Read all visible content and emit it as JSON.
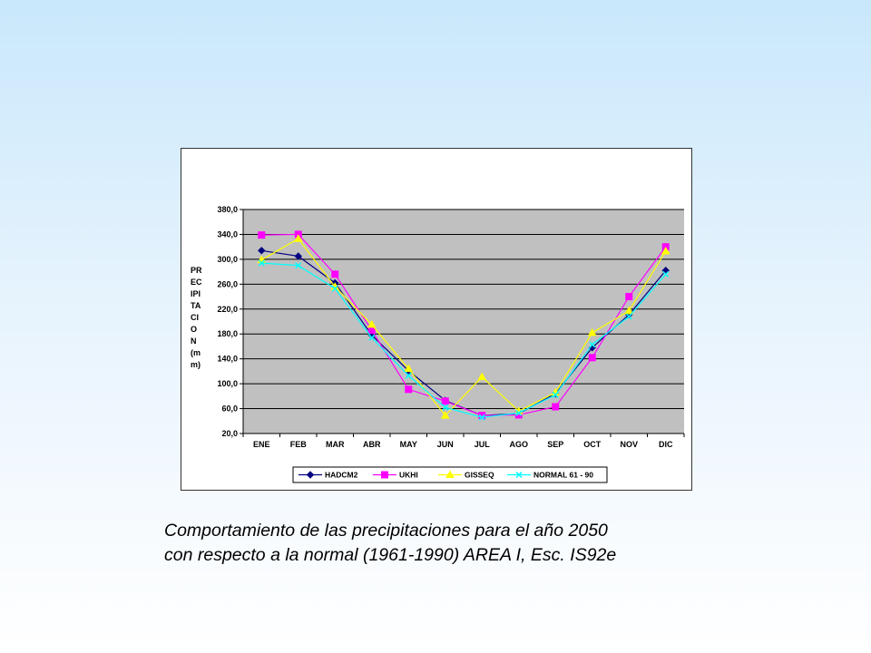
{
  "chart_data": {
    "type": "line",
    "title": "",
    "categories": [
      "ENE",
      "FEB",
      "MAR",
      "ABR",
      "MAY",
      "JUN",
      "JUL",
      "AGO",
      "SEP",
      "OCT",
      "NOV",
      "DIC"
    ],
    "ylabel": "PRECIPITACION (mm)",
    "ylabel_lines": [
      "PR",
      "EC",
      "IPI",
      "TA",
      "CI",
      "O",
      "N",
      "(m",
      "m)"
    ],
    "ylim": [
      20,
      380
    ],
    "yticks": [
      "380,0",
      "340,0",
      "300,0",
      "260,0",
      "220,0",
      "180,0",
      "140,0",
      "100,0",
      "60,0",
      "20,0"
    ],
    "ytick_values": [
      380,
      340,
      300,
      260,
      220,
      180,
      140,
      100,
      60,
      20
    ],
    "grid": true,
    "plot_background": "#c0c0c0",
    "legend_position": "bottom",
    "series": [
      {
        "name": "HADCM2",
        "color": "#000080",
        "marker": "diamond",
        "values": [
          314,
          305,
          262,
          178,
          121,
          73,
          49,
          52,
          84,
          158,
          211,
          282
        ]
      },
      {
        "name": "UKHI",
        "color": "#ff00ff",
        "marker": "square",
        "values": [
          339,
          340,
          276,
          186,
          91,
          72,
          49,
          50,
          63,
          142,
          240,
          320
        ]
      },
      {
        "name": "GISSEQ",
        "color": "#ffff00",
        "marker": "triangle",
        "values": [
          299,
          333,
          256,
          195,
          124,
          49,
          111,
          56,
          86,
          182,
          217,
          313
        ]
      },
      {
        "name": "NORMAL 61 - 90",
        "color": "#00ffff",
        "marker": "x",
        "values": [
          294,
          290,
          253,
          174,
          113,
          62,
          46,
          53,
          82,
          163,
          208,
          276
        ]
      }
    ]
  },
  "caption": {
    "line1": "Comportamiento de las precipitaciones para el año 2050",
    "line2": "con respecto a la normal (1961-1990) AREA I, Esc. IS92e"
  }
}
